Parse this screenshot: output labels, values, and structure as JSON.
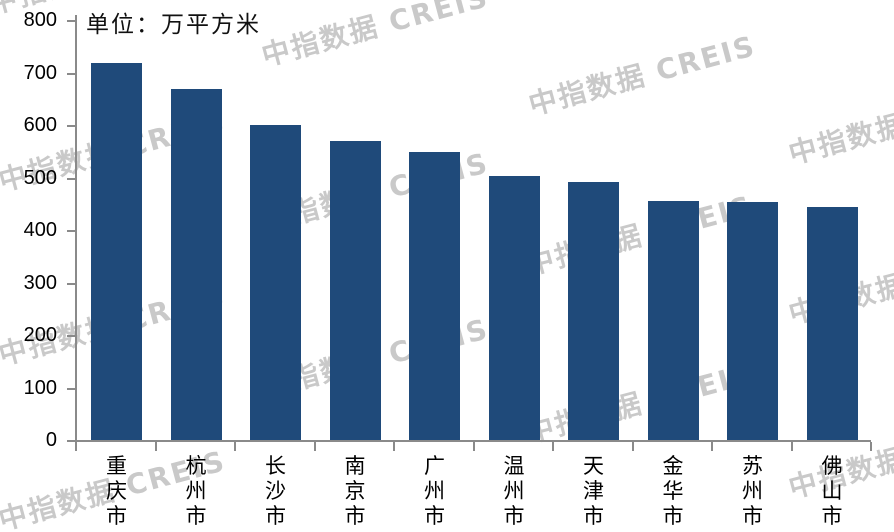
{
  "chart_data": {
    "type": "bar",
    "title_unit": "单位：万平方米",
    "categories": [
      "重庆市",
      "杭州市",
      "长沙市",
      "南京市",
      "广州市",
      "温州市",
      "天津市",
      "金华市",
      "苏州市",
      "佛山市"
    ],
    "values": [
      720,
      670,
      602,
      572,
      550,
      505,
      493,
      458,
      455,
      445
    ],
    "xlabel": "",
    "ylabel": "",
    "ylim": [
      0,
      800
    ],
    "yticks": [
      0,
      100,
      200,
      300,
      400,
      500,
      600,
      700,
      800
    ],
    "xlabel_orientation": "vertical",
    "grid": false,
    "legend": "none",
    "bar_color": "#1F4A7A",
    "axis_color": "#8a8a8a",
    "text_color": "#000000"
  },
  "watermark": {
    "text": "中指数据 CREIS",
    "color": "#c9c9c9",
    "positions": [
      [
        -15,
        -47
      ],
      [
        258,
        5
      ],
      [
        525,
        54
      ],
      [
        785,
        103
      ],
      [
        -5,
        130
      ],
      [
        258,
        171
      ],
      [
        522,
        214
      ],
      [
        785,
        263
      ],
      [
        -5,
        304
      ],
      [
        258,
        337
      ],
      [
        522,
        382
      ],
      [
        785,
        437
      ],
      [
        -5,
        469
      ]
    ]
  }
}
